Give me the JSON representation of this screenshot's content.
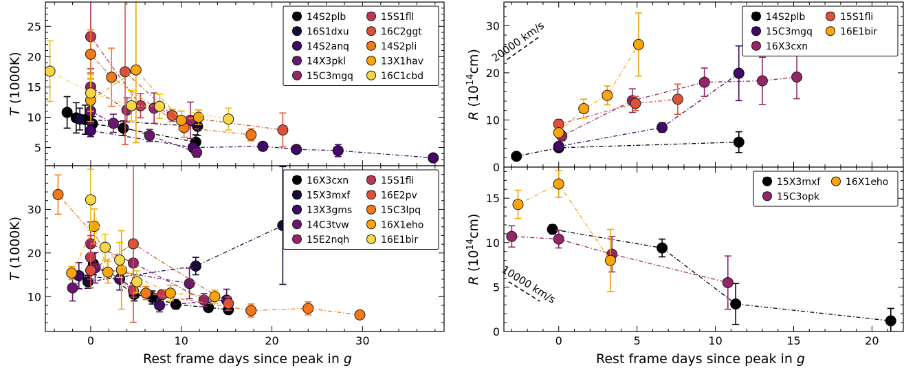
{
  "figure": {
    "xlabel_left": "Rest frame days since peak in g",
    "xlabel_right": "Rest frame days since peak in g"
  },
  "chart_data": [
    {
      "id": "tl",
      "type": "scatter",
      "ylabel": "T (1000K)",
      "xlim": [
        -5,
        39
      ],
      "ylim": [
        2,
        29
      ],
      "xticks": [
        0,
        10,
        20,
        30
      ],
      "yticks": [
        5,
        10,
        15,
        20,
        25
      ],
      "show_xticklabels": false,
      "legend": {
        "placement": "top-right",
        "ncol": 2
      },
      "series": [
        {
          "name": "14S2plb",
          "color": "#000004",
          "points": [
            [
              -2.6,
              10.8,
              2.6
            ],
            [
              -1.6,
              9.9,
              2.5
            ],
            [
              -0.6,
              9.6,
              2.4
            ],
            [
              0.2,
              8.9,
              1.2
            ],
            [
              3.6,
              8.2,
              1.2
            ],
            [
              11.6,
              5.9,
              1.2
            ]
          ]
        },
        {
          "name": "16S1dxu",
          "color": "#160b39",
          "points": [
            [
              -1.2,
              9.7,
              1.8
            ],
            [
              11.8,
              8.5,
              1.5
            ]
          ]
        },
        {
          "name": "14S2anq",
          "color": "#420a68",
          "points": [
            [
              0,
              7.8,
              1.0
            ],
            [
              11.3,
              5.0,
              0.6
            ],
            [
              19.0,
              5.2,
              0.4
            ],
            [
              22.7,
              4.7,
              0.4
            ],
            [
              27.3,
              4.5,
              1.0
            ],
            [
              37.8,
              3.3,
              0.5
            ]
          ]
        },
        {
          "name": "14X3pkl",
          "color": "#6a176e",
          "points": [
            [
              0,
              11.0,
              2.0
            ],
            [
              2.5,
              9.0,
              1.5
            ],
            [
              6.5,
              7.0,
              1.0
            ],
            [
              11.7,
              4.2,
              0.8
            ]
          ]
        },
        {
          "name": "15C3mgq",
          "color": "#932667",
          "points": [
            [
              0,
              15.0,
              3.0
            ],
            [
              4.0,
              11.2,
              2.0
            ],
            [
              7.0,
              11.5,
              2.5
            ],
            [
              11.0,
              9.5,
              3.0
            ]
          ]
        },
        {
          "name": "15S1fll",
          "color": "#bc3754",
          "points": [
            [
              0,
              23.3,
              6.0
            ],
            [
              5.5,
              11.9,
              2.0
            ]
          ]
        },
        {
          "name": "16C2ggt",
          "color": "#dd513a",
          "points": [
            [
              3.8,
              17.5,
              12.0
            ],
            [
              9.0,
              10.3,
              1.0
            ],
            [
              21.2,
              7.9,
              2.8
            ]
          ]
        },
        {
          "name": "14S2pli",
          "color": "#f37819",
          "points": [
            [
              0,
              20.4,
              4.0
            ],
            [
              2.3,
              16.6,
              4.8
            ],
            [
              10.3,
              8.3,
              1.6
            ],
            [
              17.7,
              7.1,
              1.0
            ]
          ]
        },
        {
          "name": "13X1hav",
          "color": "#fca50a",
          "points": [
            [
              0,
              12.8,
              3.5
            ],
            [
              5.0,
              17.8,
              12.0
            ],
            [
              10.0,
              9.5,
              1.5
            ],
            [
              11.9,
              10.0,
              1.2
            ]
          ]
        },
        {
          "name": "16C1cbd",
          "color": "#f6d746",
          "points": [
            [
              -4.5,
              17.6,
              5.0
            ],
            [
              0,
              14.0,
              3.0
            ],
            [
              4.5,
              11.9,
              2.5
            ],
            [
              7.6,
              11.8,
              2.0
            ],
            [
              15.2,
              9.7,
              1.8
            ]
          ]
        }
      ]
    },
    {
      "id": "bl",
      "type": "scatter",
      "ylabel": "T (1000K)",
      "xlim": [
        -5,
        39
      ],
      "ylim": [
        2,
        40
      ],
      "xticks": [
        0,
        10,
        20,
        30
      ],
      "yticks": [
        10,
        20,
        30
      ],
      "show_xticklabels": true,
      "legend": {
        "placement": "top-right",
        "ncol": 2
      },
      "series": [
        {
          "name": "16X3cxn",
          "color": "#000004",
          "points": [
            [
              0.3,
              17.5,
              2.5
            ],
            [
              4.8,
              10.5,
              1.5
            ],
            [
              6.8,
              9.8,
              1.5
            ],
            [
              9.4,
              8.2,
              1.0
            ],
            [
              13.0,
              7.5,
              1.0
            ],
            [
              15.2,
              7.0,
              1.0
            ]
          ]
        },
        {
          "name": "15X3mxf",
          "color": "#160b39",
          "points": [
            [
              -0.3,
              13.4,
              1.5
            ],
            [
              11.6,
              17.0,
              2.0
            ],
            [
              21.2,
              26.3,
              13.5
            ]
          ]
        },
        {
          "name": "13X3gms",
          "color": "#420a68",
          "points": [
            [
              -1.3,
              14.8,
              3.0
            ],
            [
              3.2,
              14.0,
              2.5
            ],
            [
              7.6,
              8.0,
              1.5
            ],
            [
              15.0,
              9.2,
              2.5
            ]
          ]
        },
        {
          "name": "14C3tvw",
          "color": "#6a176e",
          "points": [
            [
              -2.0,
              12.0,
              3.0
            ],
            [
              0.5,
              16.6,
              3.5
            ],
            [
              10.9,
              13.0,
              3.5
            ]
          ]
        },
        {
          "name": "15E2nqh",
          "color": "#932667",
          "points": [
            [
              0,
              22.1,
              5.0
            ],
            [
              4.7,
              17.7,
              4.5
            ],
            [
              12.5,
              9.2,
              1.5
            ]
          ]
        },
        {
          "name": "15S1fli",
          "color": "#bc3754",
          "points": [
            [
              0,
              19.0,
              5.0
            ],
            [
              4.7,
              11.4,
              1.5
            ],
            [
              7.9,
              10.5,
              1.0
            ]
          ]
        },
        {
          "name": "16E2pv",
          "color": "#dd513a",
          "points": [
            [
              0,
              16.0,
              4.0
            ],
            [
              4.7,
              22.1,
              18.0
            ],
            [
              15.2,
              8.4,
              1.5
            ]
          ]
        },
        {
          "name": "15C3lpq",
          "color": "#f37819",
          "points": [
            [
              -3.6,
              33.4,
              4.5
            ],
            [
              6.1,
              10.8,
              1.5
            ],
            [
              17.7,
              6.8,
              1.5
            ],
            [
              24.0,
              7.3,
              1.5
            ],
            [
              29.7,
              5.8,
              0.6
            ]
          ]
        },
        {
          "name": "16X1eho",
          "color": "#fca50a",
          "points": [
            [
              -2.1,
              15.4,
              1.5
            ],
            [
              0.4,
              26.1,
              4.0
            ],
            [
              1.9,
              15.6,
              2.5
            ],
            [
              3.4,
              16.1,
              9.0
            ],
            [
              8.8,
              10.8,
              1.8
            ],
            [
              13.7,
              10.0,
              1.5
            ]
          ]
        },
        {
          "name": "16E1bir",
          "color": "#f6d746",
          "points": [
            [
              0,
              32.2,
              7.0
            ],
            [
              1.6,
              21.3,
              3.0
            ],
            [
              3.2,
              18.4,
              4.0
            ],
            [
              5.1,
              13.4,
              2.5
            ]
          ]
        }
      ]
    },
    {
      "id": "tr",
      "type": "scatter",
      "ylabel": "R (10^14cm)",
      "xlim": [
        -3.5,
        22
      ],
      "ylim": [
        0,
        35
      ],
      "xticks": [
        0,
        5,
        10,
        15,
        20
      ],
      "yticks": [
        0,
        10,
        20,
        30
      ],
      "show_xticklabels": false,
      "legend": {
        "placement": "top-right",
        "ncol": 2
      },
      "annotation": {
        "text": "20000 km/s",
        "x1": -3.3,
        "y1": 22.8,
        "x2": -1.3,
        "y2": 27.5
      },
      "series": [
        {
          "name": "14S2plb",
          "color": "#000004",
          "points": [
            [
              -2.7,
              2.3,
              0.5
            ],
            [
              0,
              4.1,
              0.8
            ],
            [
              11.5,
              5.3,
              2.2
            ]
          ]
        },
        {
          "name": "15C3mgq",
          "color": "#420a68",
          "points": [
            [
              0,
              4.4,
              0.8
            ],
            [
              6.6,
              8.4,
              1.0
            ],
            [
              11.5,
              19.9,
              5.8
            ]
          ]
        },
        {
          "name": "16X3cxn",
          "color": "#932667",
          "points": [
            [
              0.2,
              6.6,
              1.0
            ],
            [
              4.7,
              14.1,
              2.5
            ],
            [
              9.3,
              18.0,
              3.0
            ],
            [
              13.0,
              18.3,
              5.0
            ],
            [
              15.2,
              19.1,
              4.6
            ]
          ]
        },
        {
          "name": "15S1fli",
          "color": "#dd513a",
          "points": [
            [
              0,
              9.1,
              1.0
            ],
            [
              4.9,
              13.5,
              1.5
            ],
            [
              7.6,
              14.4,
              3.2
            ]
          ]
        },
        {
          "name": "16E1bir",
          "color": "#fca50a",
          "points": [
            [
              0,
              7.3,
              1.0
            ],
            [
              1.6,
              12.4,
              2.0
            ],
            [
              3.1,
              15.2,
              2.0
            ],
            [
              5.1,
              26.0,
              6.7
            ]
          ]
        }
      ]
    },
    {
      "id": "br",
      "type": "scatter",
      "ylabel": "R (10^14cm)",
      "xlim": [
        -3.5,
        22
      ],
      "ylim": [
        0,
        18.5
      ],
      "xticks": [
        0,
        5,
        10,
        15,
        20
      ],
      "yticks": [
        0,
        5,
        10,
        15
      ],
      "show_xticklabels": true,
      "legend": {
        "placement": "top-right",
        "ncol": 2
      },
      "annotation": {
        "text": "10000 km/s",
        "x1": -3.2,
        "y1": 5.6,
        "x2": -1.2,
        "y2": 3.4
      },
      "series": [
        {
          "name": "15X3mxf",
          "color": "#000004",
          "points": [
            [
              -0.4,
              11.5,
              0.5
            ],
            [
              6.6,
              9.4,
              1.0
            ],
            [
              11.3,
              3.1,
              2.3
            ],
            [
              21.2,
              1.2,
              1.4
            ]
          ]
        },
        {
          "name": "15C3opk",
          "color": "#932667",
          "points": [
            [
              -3.0,
              10.7,
              1.2
            ],
            [
              0,
              10.4,
              1.0
            ],
            [
              3.4,
              8.7,
              2.0
            ],
            [
              10.8,
              5.5,
              3.0
            ]
          ]
        },
        {
          "name": "16X1eho",
          "color": "#fca50a",
          "points": [
            [
              -2.6,
              14.3,
              1.6
            ],
            [
              0,
              16.6,
              1.5
            ],
            [
              3.3,
              8.0,
              3.5
            ]
          ]
        }
      ]
    }
  ]
}
